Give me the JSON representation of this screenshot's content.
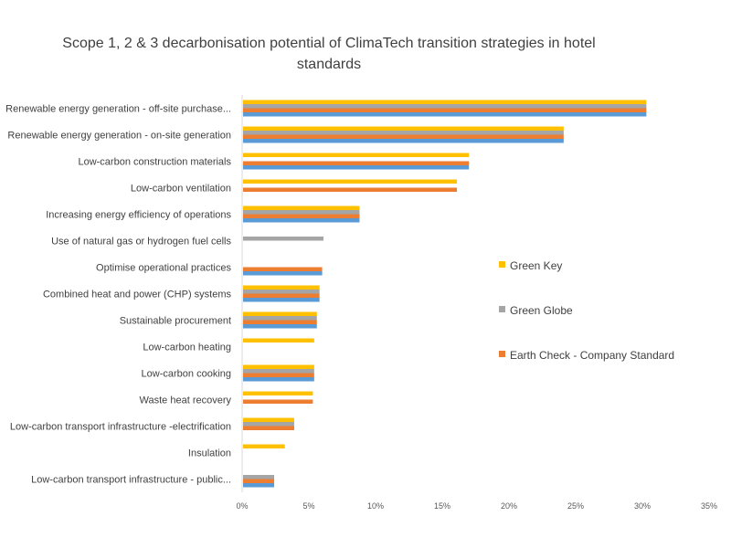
{
  "chart_data": {
    "type": "bar",
    "orientation": "horizontal",
    "title": "Scope 1, 2 & 3 decarbonisation potential of ClimaTech transition strategies in hotel standards",
    "categories": [
      "Renewable energy generation  - off-site purchase...",
      "Renewable energy generation - on-site generation",
      "Low-carbon construction materials",
      "Low-carbon ventilation",
      "Increasing energy efficiency of operations",
      "Use of natural gas or hydrogen fuel cells",
      "Optimise operational practices",
      "Combined heat and power (CHP) systems",
      "Sustainable procurement",
      "Low-carbon heating",
      "Low-carbon cooking",
      "Waste heat recovery",
      "Low-carbon transport infrastructure -electrification",
      "Insulation",
      "Low-carbon transport infrastructure - public..."
    ],
    "series": [
      {
        "name": "Green Key",
        "color": "#FFC000",
        "values": [
          30.3,
          24.1,
          17.0,
          16.1,
          8.8,
          null,
          null,
          5.8,
          5.6,
          5.4,
          5.4,
          5.3,
          3.9,
          3.2,
          null
        ]
      },
      {
        "name": "Green Globe",
        "color": "#A5A5A5",
        "values": [
          30.3,
          24.1,
          null,
          null,
          8.8,
          6.1,
          null,
          5.8,
          5.6,
          null,
          5.4,
          null,
          3.9,
          null,
          2.4
        ]
      },
      {
        "name": "Earth Check - Company Standard",
        "color": "#ED7D31",
        "values": [
          30.3,
          24.1,
          17.0,
          16.1,
          8.8,
          null,
          6.0,
          5.8,
          5.6,
          null,
          5.4,
          5.3,
          3.9,
          null,
          2.4
        ]
      },
      {
        "name": "",
        "color": "#5B9BD5",
        "values": [
          30.3,
          24.1,
          17.0,
          null,
          8.8,
          null,
          6.0,
          5.8,
          5.6,
          null,
          5.4,
          null,
          null,
          null,
          2.4
        ]
      }
    ],
    "x_ticks": [
      "0%",
      "5%",
      "10%",
      "15%",
      "20%",
      "25%",
      "30%",
      "35%"
    ],
    "xlim": [
      0,
      35
    ],
    "grid": false,
    "legend_placement": "right"
  }
}
